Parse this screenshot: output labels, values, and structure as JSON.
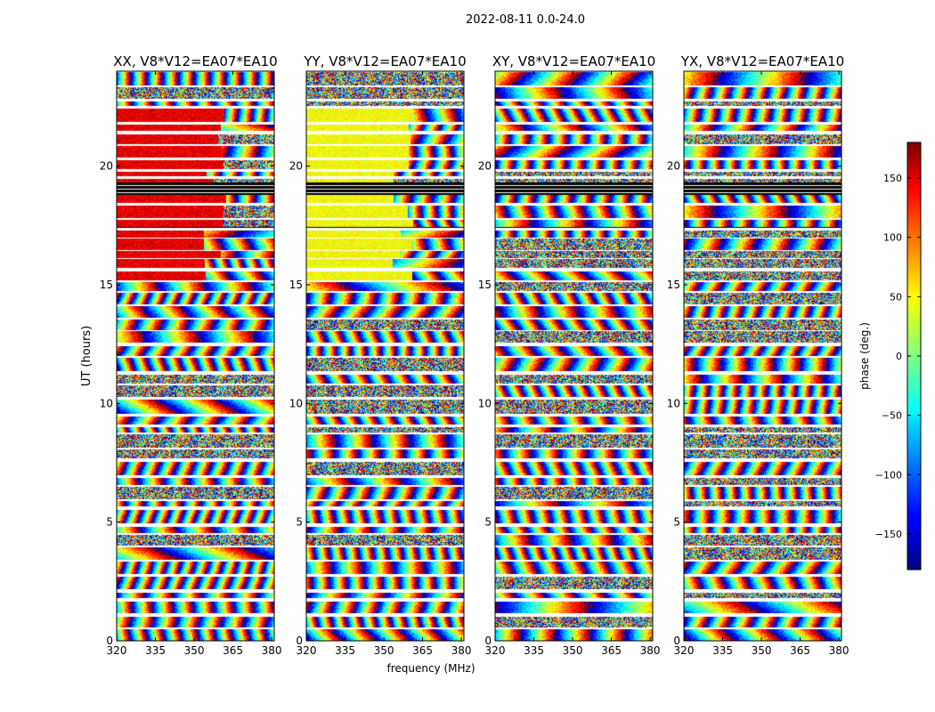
{
  "figure": {
    "suptitle": "2022-08-11 0.0-24.0",
    "ylabel": "UT (hours)",
    "xlabel": "frequency (MHz)"
  },
  "chart_data": {
    "type": "heatmap",
    "title": "2022-08-11 0.0-24.0",
    "xlabel": "frequency (MHz)",
    "ylabel": "UT (hours)",
    "xlim": [
      320,
      381
    ],
    "ylim": [
      0,
      24
    ],
    "xticks": [
      "320",
      "335",
      "350",
      "365",
      "380"
    ],
    "xtick_values": [
      320,
      335,
      350,
      365,
      380
    ],
    "yticks": [
      "0",
      "5",
      "10",
      "15",
      "20"
    ],
    "ytick_values": [
      0,
      5,
      10,
      15,
      20
    ],
    "panels": [
      {
        "title": "XX, V8*V12=EA07*EA10",
        "dominant_hue": "red"
      },
      {
        "title": "YY, V8*V12=EA07*EA10",
        "dominant_hue": "yellow-green"
      },
      {
        "title": "XY, V8*V12=EA07*EA10",
        "dominant_hue": "mixed"
      },
      {
        "title": "YX, V8*V12=EA07*EA10",
        "dominant_hue": "mixed"
      }
    ],
    "flagged_rows_hours": [
      [
        17.35,
        17.45
      ],
      [
        18.8,
        19.3
      ]
    ],
    "colorbar": {
      "label": "phase (deg.)",
      "range": [
        -180,
        180
      ],
      "tick_values": [
        -150,
        -100,
        -50,
        0,
        50,
        100,
        150
      ],
      "tick_labels": [
        "−150",
        "−100",
        "−50",
        "0",
        "50",
        "100",
        "150"
      ],
      "colormap": "jet"
    }
  }
}
